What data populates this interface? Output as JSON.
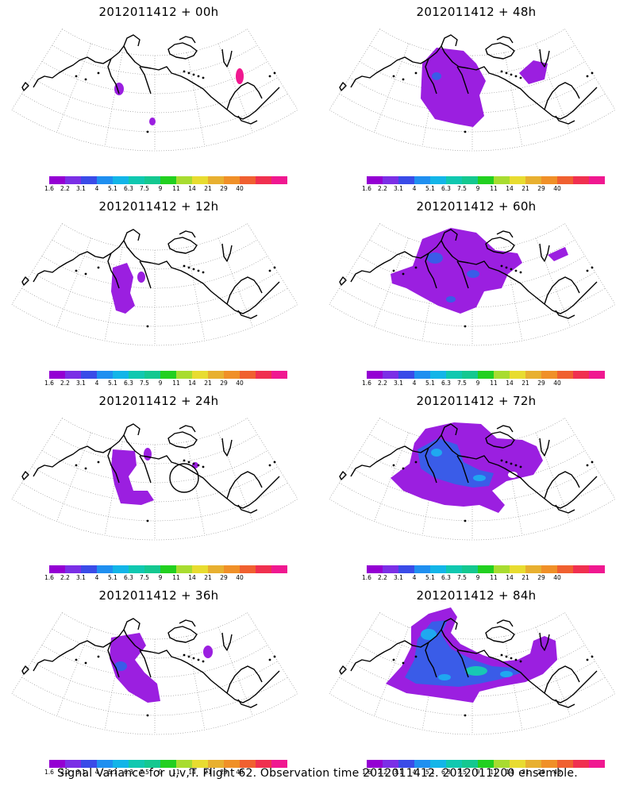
{
  "panels": [
    {
      "title": "2012011412 + 00h",
      "level": 0
    },
    {
      "title": "2012011412 + 48h",
      "level": 4
    },
    {
      "title": "2012011412 + 12h",
      "level": 1
    },
    {
      "title": "2012011412 + 60h",
      "level": 5
    },
    {
      "title": "2012011412 + 24h",
      "level": 2,
      "circle": true
    },
    {
      "title": "2012011412 + 72h",
      "level": 6
    },
    {
      "title": "2012011412 + 36h",
      "level": 3
    },
    {
      "title": "2012011412 + 84h",
      "level": 7
    }
  ],
  "colorbar": {
    "labels": [
      "1.6",
      "2.2",
      "3.1",
      "4",
      "5.1",
      "6.3",
      "7.5",
      "9",
      "11",
      "14",
      "21",
      "29",
      "40"
    ],
    "colors": [
      "#9400d3",
      "#7b2fe6",
      "#3a4be8",
      "#1f8ff0",
      "#13b5e8",
      "#10c8b0",
      "#14c890",
      "#22d020",
      "#a8dc30",
      "#e8dc30",
      "#e8b030",
      "#f09028",
      "#f06030",
      "#f03050",
      "#f01890"
    ]
  },
  "footer": "Signal Variance for u,v,T. Flight 62. Observation time 2012011412. 2012011200 ensemble."
}
